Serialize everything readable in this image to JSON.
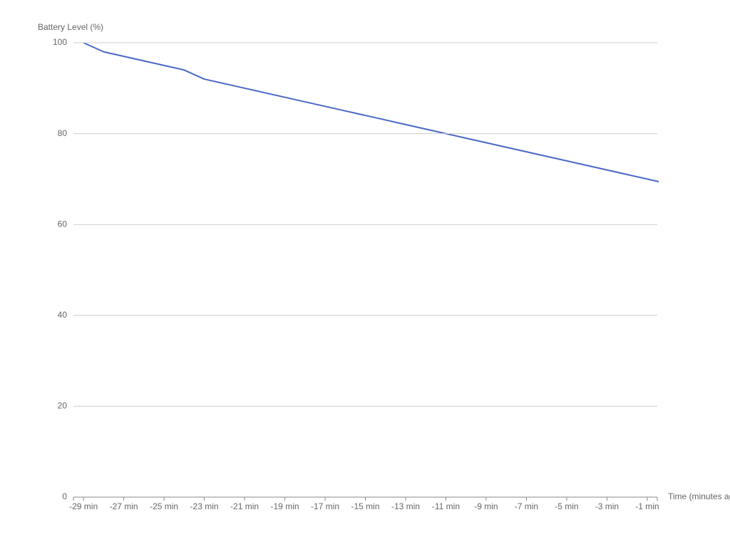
{
  "chart_data": {
    "type": "line",
    "y_label": "Battery Level (%)",
    "x_label": "Time (minutes ago)",
    "x": [
      -29,
      -28,
      -27,
      -26,
      -25,
      -24,
      -23,
      -22,
      -21,
      -20,
      -19,
      -18,
      -17,
      -16,
      -15,
      -14,
      -13,
      -12,
      -11,
      -10,
      -9,
      -8,
      -7,
      -6,
      -5,
      -4,
      -3,
      -2,
      -1,
      0
    ],
    "series": [
      {
        "color": "#4a68c6",
        "values": [
          100,
          98,
          97,
          96,
          95,
          94,
          92,
          91,
          90,
          89,
          88,
          87,
          86,
          85,
          84,
          83,
          82,
          81,
          80,
          79,
          78,
          77,
          76,
          75,
          74,
          73,
          72,
          71,
          70,
          69
        ]
      }
    ],
    "xlim": [
      -29.5,
      -0.5
    ],
    "xticks": [
      {
        "value": -29,
        "label": "-29 min"
      },
      {
        "value": -27,
        "label": "-27 min"
      },
      {
        "value": -25,
        "label": "-25 min"
      },
      {
        "value": -23,
        "label": "-23 min"
      },
      {
        "value": -21,
        "label": "-21 min"
      },
      {
        "value": -19,
        "label": "-19 min"
      },
      {
        "value": -17,
        "label": "-17 min"
      },
      {
        "value": -15,
        "label": "-15 min"
      },
      {
        "value": -13,
        "label": "-13 min"
      },
      {
        "value": -11,
        "label": "-11 min"
      },
      {
        "value": -9,
        "label": "-9 min"
      },
      {
        "value": -7,
        "label": "-7 min"
      },
      {
        "value": -5,
        "label": "-5 min"
      },
      {
        "value": -3,
        "label": "-3 min"
      },
      {
        "value": -1,
        "label": "-1 min"
      }
    ],
    "ylim": [
      0,
      100
    ],
    "yticks": [
      0,
      20,
      40,
      60,
      80,
      100
    ],
    "grid": true
  }
}
